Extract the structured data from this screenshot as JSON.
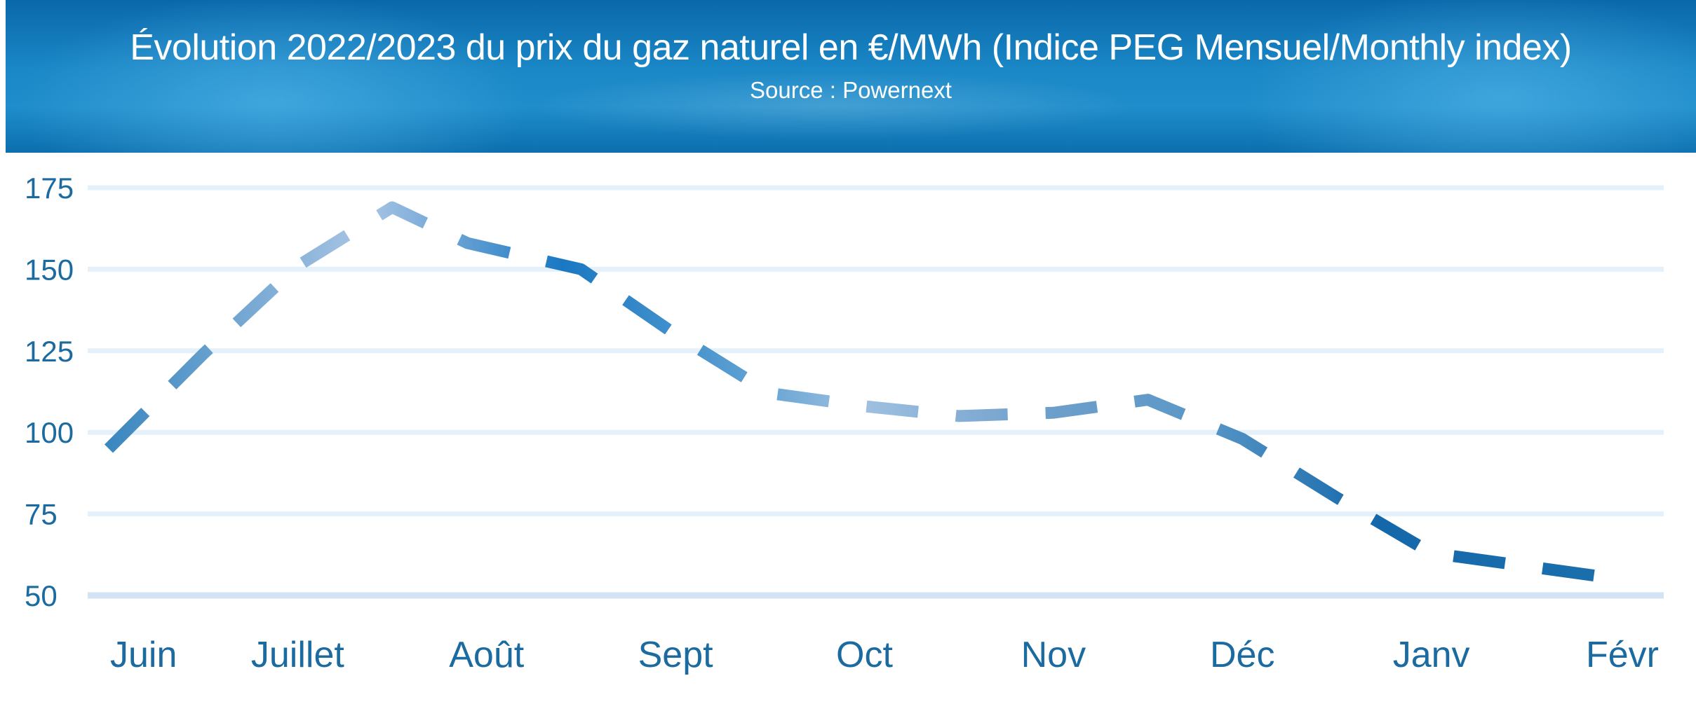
{
  "chart_data": {
    "type": "line",
    "title": "Évolution 2022/2023 du prix du gaz naturel en €/MWh (Indice PEG Mensuel/Monthly index)",
    "subtitle": "Source : Powernext",
    "xlabel": "",
    "ylabel": "",
    "categories": [
      "Juin",
      "Juillet",
      "Août",
      "Sept",
      "Oct",
      "Nov",
      "Déc",
      "Janv",
      "Févr"
    ],
    "x_positions": [
      0,
      1,
      2,
      3,
      4,
      5,
      6,
      7,
      8
    ],
    "series": [
      {
        "values": [
          95,
          124,
          151,
          169,
          158,
          150,
          130,
          112,
          108,
          105,
          106,
          110,
          98,
          80,
          63,
          59,
          55
        ],
        "x": [
          0,
          0.5,
          1,
          1.5,
          1.9,
          2.5,
          3,
          3.5,
          4,
          4.5,
          5,
          5.5,
          6,
          6.5,
          7,
          7.5,
          8
        ]
      }
    ],
    "y_ticks": [
      175,
      150,
      125,
      100,
      75,
      50
    ],
    "ylim": [
      50,
      175
    ],
    "grid": true,
    "legend": "none",
    "colors": {
      "line_dark": "#1a78c2",
      "line_light": "#a9c5e4",
      "grid": "#e5f1fa",
      "baseline": "#d2e3f3",
      "tick_text": "#1b6aa0",
      "header": "#1780c2"
    }
  }
}
